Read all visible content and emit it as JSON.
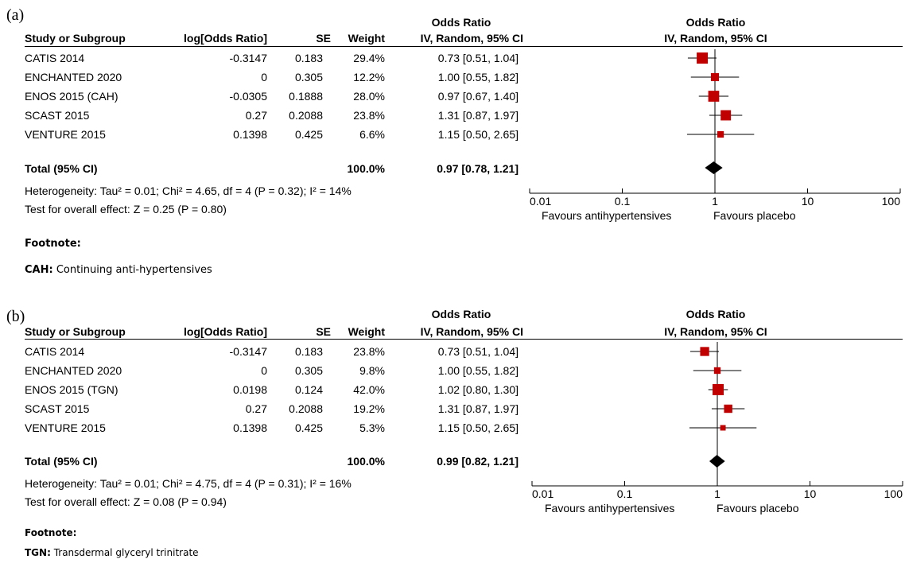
{
  "panels": [
    {
      "label": "(a)",
      "header": {
        "study": "Study or Subgroup",
        "log_or": "log[Odds Ratio]",
        "se": "SE",
        "weight": "Weight",
        "or_title": "Odds Ratio",
        "or_method": "IV, Random, 95% CI",
        "plot_title": "Odds Ratio",
        "plot_method": "IV, Random, 95% CI"
      },
      "studies": [
        {
          "name": "CATIS 2014",
          "log_or": "-0.3147",
          "se": "0.183",
          "weight": "29.4%",
          "ci": "0.73 [0.51, 1.04]"
        },
        {
          "name": "ENCHANTED 2020",
          "log_or": "0",
          "se": "0.305",
          "weight": "12.2%",
          "ci": "1.00 [0.55, 1.82]"
        },
        {
          "name": "ENOS 2015 (CAH)",
          "log_or": "-0.0305",
          "se": "0.1888",
          "weight": "28.0%",
          "ci": "0.97 [0.67, 1.40]"
        },
        {
          "name": "SCAST 2015",
          "log_or": "0.27",
          "se": "0.2088",
          "weight": "23.8%",
          "ci": "1.31 [0.87, 1.97]"
        },
        {
          "name": "VENTURE 2015",
          "log_or": "0.1398",
          "se": "0.425",
          "weight": "6.6%",
          "ci": "1.15 [0.50, 2.65]"
        }
      ],
      "total": {
        "name": "Total (95% CI)",
        "weight": "100.0%",
        "ci": "0.97 [0.78, 1.21]"
      },
      "heterogeneity": "Heterogeneity: Tau² = 0.01; Chi² = 4.65, df = 4 (P = 0.32); I² = 14%",
      "overall_effect": "Test for overall effect: Z = 0.25 (P = 0.80)",
      "favours_left": "Favours antihypertensives",
      "favours_right": "Favours placebo",
      "footnote_heading": "Footnote:",
      "footnote_abbr": "CAH:",
      "footnote_text": " Continuing anti-hypertensives"
    },
    {
      "label": "(b)",
      "header": {
        "study": "Study or Subgroup",
        "log_or": "log[Odds Ratio]",
        "se": "SE",
        "weight": "Weight",
        "or_title": "Odds Ratio",
        "or_method": "IV, Random, 95% CI",
        "plot_title": "Odds Ratio",
        "plot_method": "IV, Random, 95% CI"
      },
      "studies": [
        {
          "name": "CATIS 2014",
          "log_or": "-0.3147",
          "se": "0.183",
          "weight": "23.8%",
          "ci": "0.73 [0.51, 1.04]"
        },
        {
          "name": "ENCHANTED 2020",
          "log_or": "0",
          "se": "0.305",
          "weight": "9.8%",
          "ci": "1.00 [0.55, 1.82]"
        },
        {
          "name": "ENOS 2015 (TGN)",
          "log_or": "0.0198",
          "se": "0.124",
          "weight": "42.0%",
          "ci": "1.02 [0.80, 1.30]"
        },
        {
          "name": "SCAST 2015",
          "log_or": "0.27",
          "se": "0.2088",
          "weight": "19.2%",
          "ci": "1.31 [0.87, 1.97]"
        },
        {
          "name": "VENTURE 2015",
          "log_or": "0.1398",
          "se": "0.425",
          "weight": "5.3%",
          "ci": "1.15 [0.50, 2.65]"
        }
      ],
      "total": {
        "name": "Total (95% CI)",
        "weight": "100.0%",
        "ci": "0.99 [0.82, 1.21]"
      },
      "heterogeneity": "Heterogeneity: Tau² = 0.01; Chi² = 4.75, df = 4 (P = 0.31); I² = 16%",
      "overall_effect": "Test for overall effect: Z = 0.08 (P = 0.94)",
      "favours_left": "Favours antihypertensives",
      "favours_right": "Favours placebo",
      "footnote_heading": "Footnote:",
      "footnote_abbr": "TGN:",
      "footnote_text": " Transdermal glyceryl trinitrate"
    }
  ],
  "chart_data": [
    {
      "type": "forest",
      "scale": "log",
      "xlim": [
        0.01,
        100
      ],
      "ticks": [
        0.01,
        0.1,
        1,
        10,
        100
      ],
      "tick_labels": [
        "0.01",
        "0.1",
        "1",
        "10",
        "100"
      ],
      "null_line": 1,
      "marker_color": "#c00000",
      "points": [
        {
          "study": "CATIS 2014",
          "or": 0.73,
          "lower": 0.51,
          "upper": 1.04,
          "weight": 29.4
        },
        {
          "study": "ENCHANTED 2020",
          "or": 1.0,
          "lower": 0.55,
          "upper": 1.82,
          "weight": 12.2
        },
        {
          "study": "ENOS 2015 (CAH)",
          "or": 0.97,
          "lower": 0.67,
          "upper": 1.4,
          "weight": 28.0
        },
        {
          "study": "SCAST 2015",
          "or": 1.31,
          "lower": 0.87,
          "upper": 1.97,
          "weight": 23.8
        },
        {
          "study": "VENTURE 2015",
          "or": 1.15,
          "lower": 0.5,
          "upper": 2.65,
          "weight": 6.6
        }
      ],
      "pooled": {
        "or": 0.97,
        "lower": 0.78,
        "upper": 1.21
      }
    },
    {
      "type": "forest",
      "scale": "log",
      "xlim": [
        0.01,
        100
      ],
      "ticks": [
        0.01,
        0.1,
        1,
        10,
        100
      ],
      "tick_labels": [
        "0.01",
        "0.1",
        "1",
        "10",
        "100"
      ],
      "null_line": 1,
      "marker_color": "#c00000",
      "points": [
        {
          "study": "CATIS 2014",
          "or": 0.73,
          "lower": 0.51,
          "upper": 1.04,
          "weight": 23.8
        },
        {
          "study": "ENCHANTED 2020",
          "or": 1.0,
          "lower": 0.55,
          "upper": 1.82,
          "weight": 9.8
        },
        {
          "study": "ENOS 2015 (TGN)",
          "or": 1.02,
          "lower": 0.8,
          "upper": 1.3,
          "weight": 42.0
        },
        {
          "study": "SCAST 2015",
          "or": 1.31,
          "lower": 0.87,
          "upper": 1.97,
          "weight": 19.2
        },
        {
          "study": "VENTURE 2015",
          "or": 1.15,
          "lower": 0.5,
          "upper": 2.65,
          "weight": 5.3
        }
      ],
      "pooled": {
        "or": 0.99,
        "lower": 0.82,
        "upper": 1.21
      }
    }
  ]
}
